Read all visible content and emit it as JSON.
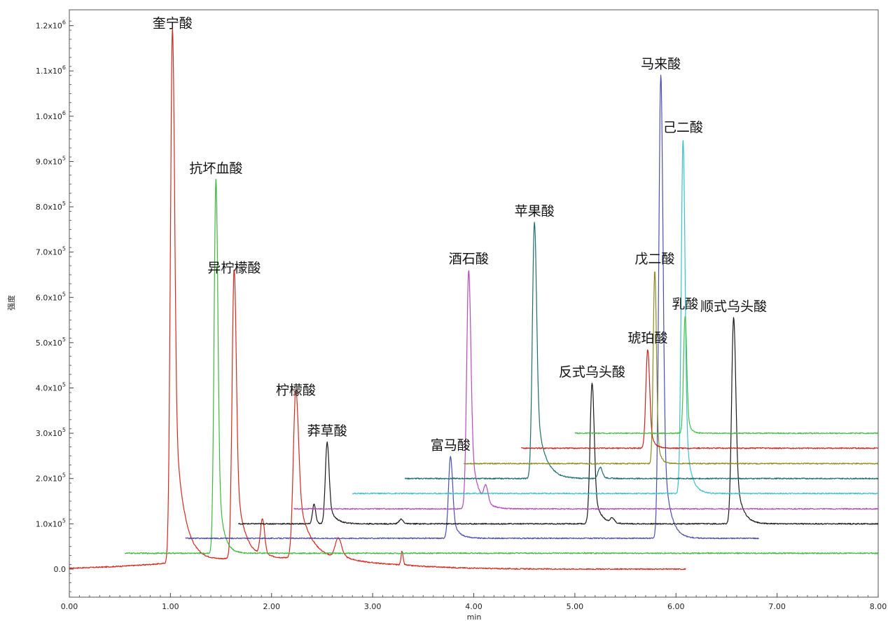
{
  "chart_data": {
    "type": "line",
    "title": "",
    "xlabel": "min",
    "ylabel": "强度",
    "xlim": [
      0,
      8
    ],
    "ylim": [
      -62000,
      1235000
    ],
    "grid": false,
    "x_ticks": [
      {
        "v": 0,
        "label": "0.00"
      },
      {
        "v": 1,
        "label": "1.00"
      },
      {
        "v": 2,
        "label": "2.00"
      },
      {
        "v": 3,
        "label": "3.00"
      },
      {
        "v": 4,
        "label": "4.00"
      },
      {
        "v": 5,
        "label": "5.00"
      },
      {
        "v": 6,
        "label": "6.00"
      },
      {
        "v": 7,
        "label": "7.00"
      },
      {
        "v": 8,
        "label": "8.00"
      }
    ],
    "y_ticks": [
      {
        "v": 0,
        "mant": "0.0",
        "exp": ""
      },
      {
        "v": 100000,
        "mant": "1.0x10",
        "exp": "5"
      },
      {
        "v": 200000,
        "mant": "2.0x10",
        "exp": "5"
      },
      {
        "v": 300000,
        "mant": "3.0x10",
        "exp": "5"
      },
      {
        "v": 400000,
        "mant": "4.0x10",
        "exp": "5"
      },
      {
        "v": 500000,
        "mant": "5.0x10",
        "exp": "5"
      },
      {
        "v": 600000,
        "mant": "6.0x10",
        "exp": "5"
      },
      {
        "v": 700000,
        "mant": "7.0x10",
        "exp": "5"
      },
      {
        "v": 800000,
        "mant": "8.0x10",
        "exp": "5"
      },
      {
        "v": 900000,
        "mant": "9.0x10",
        "exp": "5"
      },
      {
        "v": 1000000,
        "mant": "1.0x10",
        "exp": "6"
      },
      {
        "v": 1100000,
        "mant": "1.1x10",
        "exp": "6"
      },
      {
        "v": 1200000,
        "mant": "1.2x10",
        "exp": "6"
      }
    ],
    "series": [
      {
        "color": "#d42a1e",
        "xStart": 0.0,
        "xEnd": 6.1,
        "baseline": 0,
        "peaks": [
          {
            "x": 1.02,
            "y": 1180000,
            "w": 0.02,
            "tail": 0.09,
            "tailFrac": 0.35
          },
          {
            "x": 1.63,
            "y": 640000,
            "w": 0.02,
            "tail": 0.08,
            "tailFrac": 0.35
          },
          {
            "x": 1.91,
            "y": 80000,
            "w": 0.02,
            "tail": 0.04,
            "tailFrac": 0.2
          },
          {
            "x": 2.24,
            "y": 370000,
            "w": 0.025,
            "tail": 0.12,
            "tailFrac": 0.45
          },
          {
            "x": 2.66,
            "y": 45000,
            "w": 0.03,
            "tail": 0.1,
            "tailFrac": 0.3
          },
          {
            "x": 3.29,
            "y": 30000,
            "w": 0.01,
            "tail": 0.02,
            "tailFrac": 0.2
          }
        ],
        "hump": {
          "x": 2.0,
          "y": 25000,
          "w": 0.9
        }
      },
      {
        "color": "#3db73d",
        "xStart": 0.55,
        "xEnd": 8.0,
        "baseline": 35000,
        "peaks": [
          {
            "x": 1.45,
            "y": 860000,
            "w": 0.018,
            "tail": 0.05,
            "tailFrac": 0.3
          }
        ]
      },
      {
        "color": "#4a4fb0",
        "xStart": 1.15,
        "xEnd": 6.82,
        "baseline": 68000,
        "peaks": [
          {
            "x": 3.77,
            "y": 248000,
            "w": 0.02,
            "tail": 0.06,
            "tailFrac": 0.3
          },
          {
            "x": 5.85,
            "y": 1090000,
            "w": 0.02,
            "tail": 0.06,
            "tailFrac": 0.3
          }
        ]
      },
      {
        "color": "#1a1a1a",
        "xStart": 1.67,
        "xEnd": 8.0,
        "baseline": 100000,
        "peaks": [
          {
            "x": 2.42,
            "y": 143000,
            "w": 0.015,
            "tail": 0.02,
            "tailFrac": 0.3
          },
          {
            "x": 2.55,
            "y": 280000,
            "w": 0.018,
            "tail": 0.06,
            "tailFrac": 0.3
          },
          {
            "x": 3.28,
            "y": 110000,
            "w": 0.02,
            "tail": 0.03,
            "tailFrac": 0.2
          },
          {
            "x": 5.17,
            "y": 410000,
            "w": 0.02,
            "tail": 0.06,
            "tailFrac": 0.3
          },
          {
            "x": 5.37,
            "y": 110000,
            "w": 0.02,
            "tail": 0.03,
            "tailFrac": 0.2
          },
          {
            "x": 6.57,
            "y": 555000,
            "w": 0.02,
            "tail": 0.06,
            "tailFrac": 0.35
          }
        ]
      },
      {
        "color": "#b44bb8",
        "xStart": 2.22,
        "xEnd": 8.0,
        "baseline": 133000,
        "peaks": [
          {
            "x": 3.95,
            "y": 660000,
            "w": 0.02,
            "tail": 0.07,
            "tailFrac": 0.35
          },
          {
            "x": 4.12,
            "y": 170000,
            "w": 0.02,
            "tail": 0.04,
            "tailFrac": 0.2
          }
        ]
      },
      {
        "color": "#3ac0cc",
        "xStart": 2.8,
        "xEnd": 8.0,
        "baseline": 167000,
        "peaks": [
          {
            "x": 6.07,
            "y": 950000,
            "w": 0.018,
            "tail": 0.05,
            "tailFrac": 0.3
          }
        ]
      },
      {
        "color": "#1e6d6d",
        "xStart": 3.32,
        "xEnd": 8.0,
        "baseline": 200000,
        "peaks": [
          {
            "x": 4.6,
            "y": 765000,
            "w": 0.02,
            "tail": 0.08,
            "tailFrac": 0.35
          },
          {
            "x": 5.25,
            "y": 225000,
            "w": 0.02,
            "tail": 0.05,
            "tailFrac": 0.2
          }
        ]
      },
      {
        "color": "#8a8a1e",
        "xStart": 3.9,
        "xEnd": 8.0,
        "baseline": 233000,
        "peaks": [
          {
            "x": 5.79,
            "y": 660000,
            "w": 0.015,
            "tail": 0.03,
            "tailFrac": 0.3
          }
        ]
      },
      {
        "color": "#c2261e",
        "xStart": 4.47,
        "xEnd": 8.0,
        "baseline": 267000,
        "peaks": [
          {
            "x": 5.72,
            "y": 485000,
            "w": 0.018,
            "tail": 0.04,
            "tailFrac": 0.3
          }
        ]
      },
      {
        "color": "#43c043",
        "xStart": 5.0,
        "xEnd": 8.0,
        "baseline": 300000,
        "peaks": [
          {
            "x": 6.09,
            "y": 560000,
            "w": 0.015,
            "tail": 0.03,
            "tailFrac": 0.3
          }
        ]
      }
    ],
    "peak_labels": [
      {
        "text": "奎宁酸",
        "x": 1.02,
        "y": 1180000
      },
      {
        "text": "抗坏血酸",
        "x": 1.45,
        "y": 860000
      },
      {
        "text": "异柠檬酸",
        "x": 1.63,
        "y": 640000
      },
      {
        "text": "柠檬酸",
        "x": 2.24,
        "y": 370000
      },
      {
        "text": "莽草酸",
        "x": 2.55,
        "y": 280000
      },
      {
        "text": "富马酸",
        "x": 3.77,
        "y": 248000
      },
      {
        "text": "酒石酸",
        "x": 3.95,
        "y": 660000
      },
      {
        "text": "苹果酸",
        "x": 4.6,
        "y": 765000
      },
      {
        "text": "反式乌头酸",
        "x": 5.17,
        "y": 410000
      },
      {
        "text": "琥珀酸",
        "x": 5.72,
        "y": 485000
      },
      {
        "text": "戊二酸",
        "x": 5.79,
        "y": 660000
      },
      {
        "text": "马来酸",
        "x": 5.85,
        "y": 1090000
      },
      {
        "text": "己二酸",
        "x": 6.07,
        "y": 950000
      },
      {
        "text": "乳酸",
        "x": 6.09,
        "y": 560000
      },
      {
        "text": "顺式乌头酸",
        "x": 6.57,
        "y": 555000
      }
    ]
  }
}
